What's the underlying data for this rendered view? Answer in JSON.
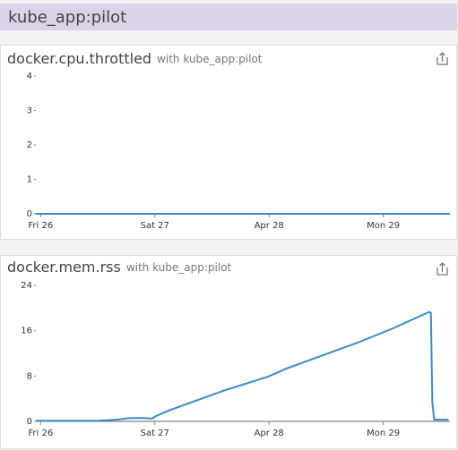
{
  "header": {
    "title": "kube_app:pilot"
  },
  "chart_data": [
    {
      "type": "line",
      "title": "docker.cpu.throttled",
      "subtitle": "with kube_app:pilot",
      "x": [
        -1,
        86
      ],
      "values": [
        0,
        0
      ],
      "color": "#3a8ac9",
      "xlim": [
        -1,
        86
      ],
      "xticks": [
        {
          "value": 0,
          "label": "Fri 26"
        },
        {
          "value": 24,
          "label": "Sat 27"
        },
        {
          "value": 48,
          "label": "Apr 28"
        },
        {
          "value": 72,
          "label": "Mon 29"
        }
      ],
      "ylim": [
        0,
        4
      ],
      "yticks": [
        0,
        1,
        2,
        3,
        4
      ]
    },
    {
      "type": "line",
      "title": "docker.mem.rss",
      "subtitle": "with kube_app:pilot",
      "x": [
        -1,
        12,
        16,
        18.75,
        21.5,
        23.4,
        24.4,
        27.2,
        38.4,
        47.8,
        51.6,
        66.6,
        74,
        81.6,
        82,
        82.3,
        82.7,
        85.7
      ],
      "values": [
        0.1,
        0.1,
        0.3,
        0.6,
        0.6,
        0.5,
        1,
        2,
        5.4,
        7.9,
        9.3,
        13.9,
        16.4,
        19.3,
        19.2,
        3.3,
        0.3,
        0.3
      ],
      "color": "#3a8ac9",
      "xlim": [
        -1,
        86
      ],
      "xticks": [
        {
          "value": 0,
          "label": "Fri 26"
        },
        {
          "value": 24,
          "label": "Sat 27"
        },
        {
          "value": 48,
          "label": "Apr 28"
        },
        {
          "value": 72,
          "label": "Mon 29"
        }
      ],
      "ylim": [
        0,
        24
      ],
      "yticks": [
        0,
        8,
        16,
        24
      ]
    }
  ]
}
